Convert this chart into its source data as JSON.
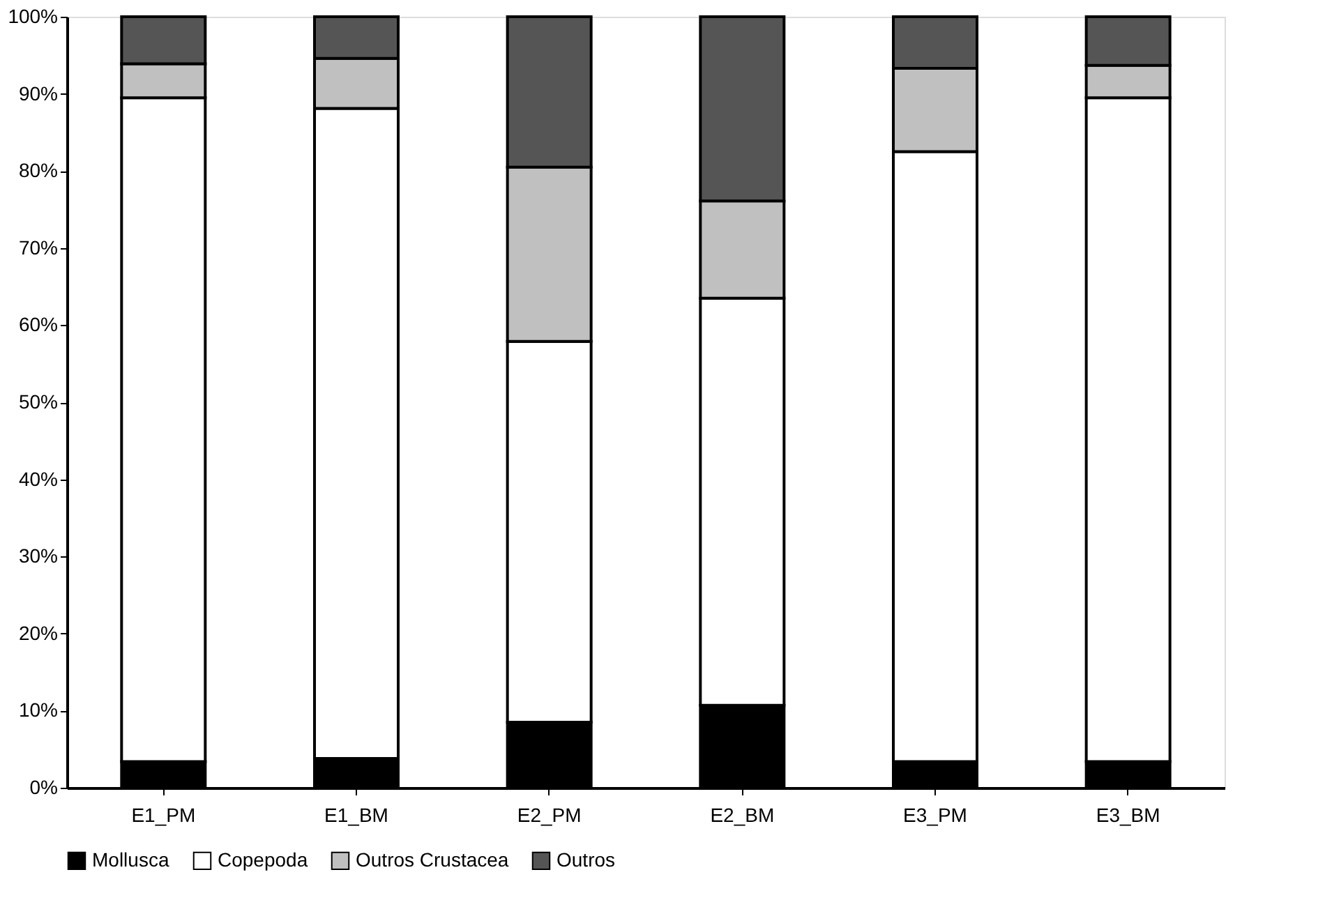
{
  "chart_data": {
    "type": "bar",
    "stacked": true,
    "categories": [
      "E1_PM",
      "E1_BM",
      "E2_PM",
      "E2_BM",
      "E3_PM",
      "E3_BM"
    ],
    "series": [
      {
        "name": "Mollusca",
        "color": "#000000",
        "values": [
          3.4,
          3.8,
          8.5,
          10.7,
          3.4,
          3.4
        ]
      },
      {
        "name": "Copepoda",
        "color": "#ffffff",
        "values": [
          86.1,
          84.3,
          49.4,
          52.8,
          79.1,
          86.1
        ]
      },
      {
        "name": "Outros Crustacea",
        "color": "#c0c0c0",
        "values": [
          4.4,
          6.5,
          22.6,
          12.6,
          10.8,
          4.2
        ]
      },
      {
        "name": "Outros",
        "color": "#555555",
        "values": [
          6.1,
          5.4,
          19.5,
          23.9,
          6.7,
          6.3
        ]
      }
    ],
    "ylim": [
      0,
      100
    ],
    "yticks": [
      {
        "value": 0,
        "label": "0%"
      },
      {
        "value": 10,
        "label": "10%"
      },
      {
        "value": 20,
        "label": "20%"
      },
      {
        "value": 30,
        "label": "30%"
      },
      {
        "value": 40,
        "label": "40%"
      },
      {
        "value": 50,
        "label": "50%"
      },
      {
        "value": 60,
        "label": "60%"
      },
      {
        "value": 70,
        "label": "70%"
      },
      {
        "value": 80,
        "label": "80%"
      },
      {
        "value": 90,
        "label": "90%"
      },
      {
        "value": 100,
        "label": "100%"
      }
    ],
    "grid": false,
    "legend": "bottom"
  }
}
